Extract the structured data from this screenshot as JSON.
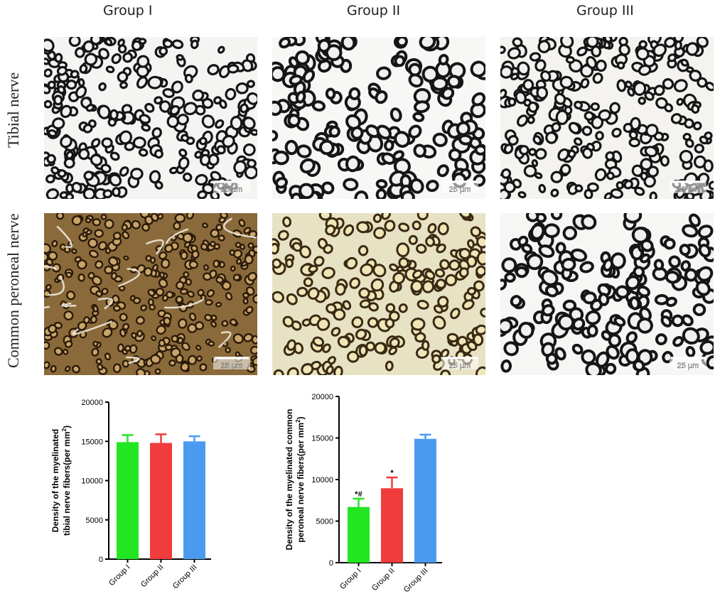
{
  "columns": [
    "Group I",
    "Group II",
    "Group III"
  ],
  "rows": [
    "Tibial nerve",
    "Common peroneal nerve"
  ],
  "scale_bar_label": "25 µm",
  "micrographs": [
    {
      "row": 0,
      "col": 0,
      "palette": "bw",
      "fibers": "small-dense",
      "cell_bg": "#f4f4f2"
    },
    {
      "row": 0,
      "col": 1,
      "palette": "bw",
      "fibers": "large",
      "cell_bg": "#f7f7f5"
    },
    {
      "row": 0,
      "col": 2,
      "palette": "bw",
      "fibers": "small-dense",
      "cell_bg": "#f4f3f0"
    },
    {
      "row": 1,
      "col": 0,
      "palette": "brown",
      "fibers": "tissue",
      "cell_bg": "#8a6a3a"
    },
    {
      "row": 1,
      "col": 1,
      "palette": "yellow",
      "fibers": "degenerated",
      "cell_bg": "#e8e2c4"
    },
    {
      "row": 1,
      "col": 2,
      "palette": "bw",
      "fibers": "large",
      "cell_bg": "#f6f6f4"
    }
  ],
  "chart_data": [
    {
      "type": "bar",
      "categories": [
        "Group I",
        "Group II",
        "Group III"
      ],
      "values": [
        14900,
        14800,
        15000
      ],
      "errors": [
        900,
        1100,
        650
      ],
      "colors": [
        "#22e622",
        "#f03c3c",
        "#4a9bf0"
      ],
      "annotations": [
        "",
        "",
        ""
      ],
      "ylabel_lines": [
        "Density of the myelinated",
        "tibial nerve fibers(per mm",
        ")"
      ],
      "ylabel_sup": "2",
      "ylim": [
        0,
        20000
      ],
      "yticks": [
        "0",
        "5000",
        "10000",
        "15000",
        "20000"
      ],
      "ytick_values": [
        0,
        5000,
        10000,
        15000,
        20000
      ]
    },
    {
      "type": "bar",
      "categories": [
        "Group I",
        "Group II",
        "Group III"
      ],
      "values": [
        6700,
        8950,
        14900
      ],
      "errors": [
        1000,
        1300,
        500
      ],
      "colors": [
        "#22e622",
        "#f03c3c",
        "#4a9bf0"
      ],
      "annotations": [
        "*#",
        "*",
        ""
      ],
      "ylabel_lines": [
        "Density of the myelinated common",
        "peroneal nerve fibers(per mm",
        ")"
      ],
      "ylabel_sup": "2",
      "ylim": [
        0,
        20000
      ],
      "yticks": [
        "0",
        "5000",
        "10000",
        "15000",
        "20000"
      ],
      "ytick_values": [
        0,
        5000,
        10000,
        15000,
        20000
      ]
    }
  ]
}
